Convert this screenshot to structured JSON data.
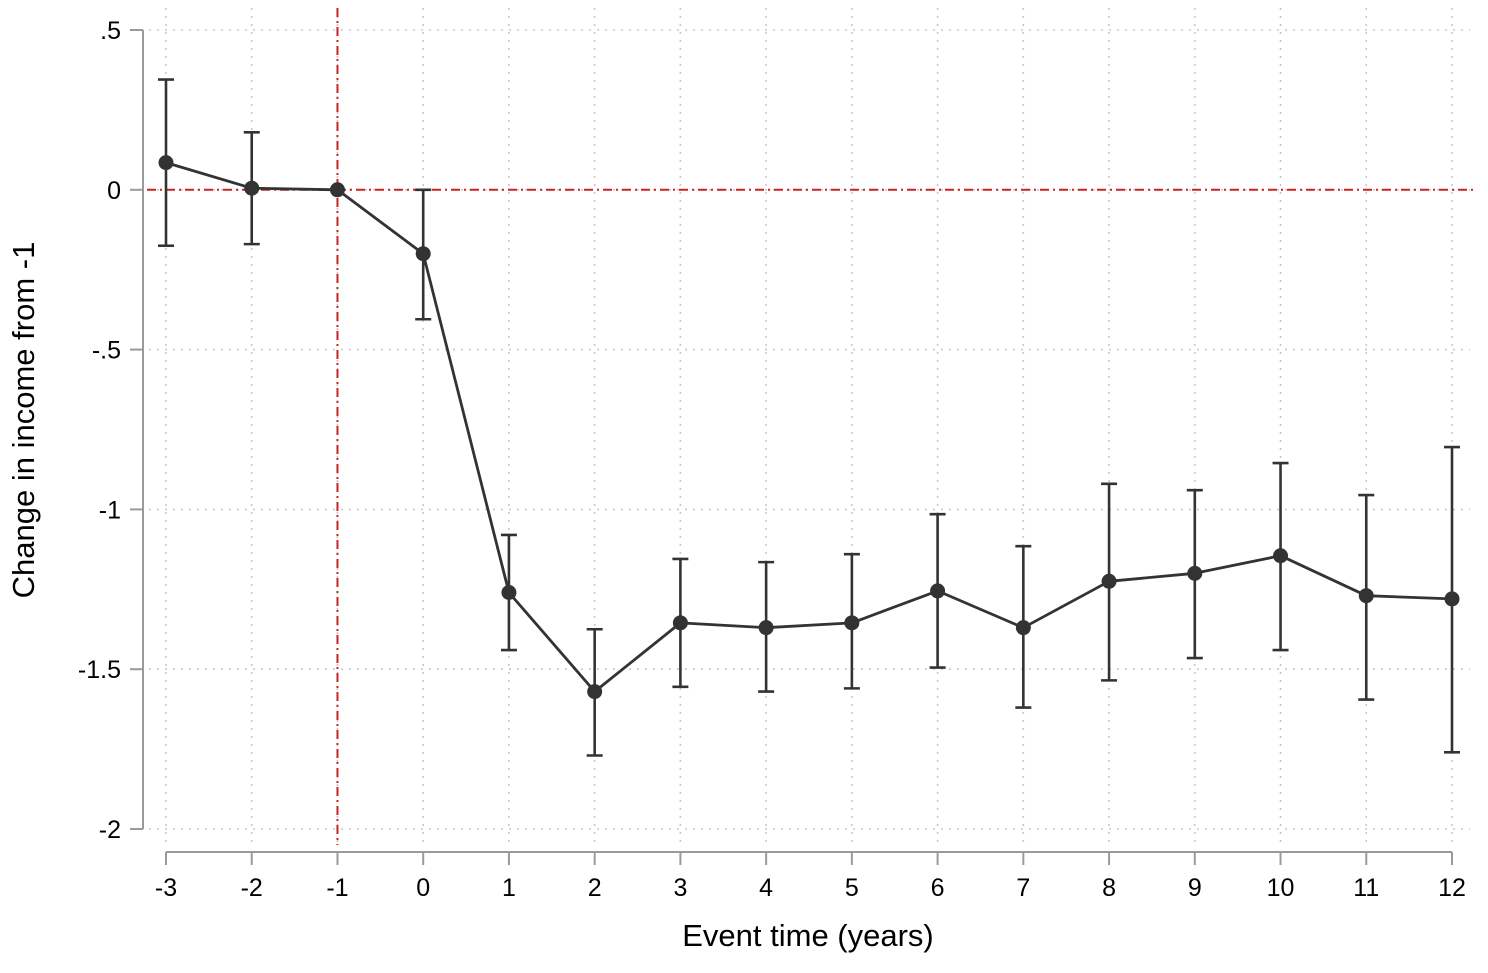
{
  "chart_data": {
    "type": "line",
    "title": "",
    "xlabel": "Event time (years)",
    "ylabel": "Change in income from -1",
    "x_ticks": [
      {
        "value": -3,
        "label": "-3"
      },
      {
        "value": -2,
        "label": "-2"
      },
      {
        "value": -1,
        "label": "-1"
      },
      {
        "value": 0,
        "label": "0"
      },
      {
        "value": 1,
        "label": "1"
      },
      {
        "value": 2,
        "label": "2"
      },
      {
        "value": 3,
        "label": "3"
      },
      {
        "value": 4,
        "label": "4"
      },
      {
        "value": 5,
        "label": "5"
      },
      {
        "value": 6,
        "label": "6"
      },
      {
        "value": 7,
        "label": "7"
      },
      {
        "value": 8,
        "label": "8"
      },
      {
        "value": 9,
        "label": "9"
      },
      {
        "value": 10,
        "label": "10"
      },
      {
        "value": 11,
        "label": "11"
      },
      {
        "value": 12,
        "label": "12"
      }
    ],
    "y_ticks": [
      {
        "value": 0.5,
        "label": ".5"
      },
      {
        "value": 0,
        "label": "0"
      },
      {
        "value": -0.5,
        "label": "-.5"
      },
      {
        "value": -1,
        "label": "-1"
      },
      {
        "value": -1.5,
        "label": "-1.5"
      },
      {
        "value": -2,
        "label": "-2"
      }
    ],
    "xlim": [
      -3,
      12
    ],
    "ylim": [
      -2,
      0.5
    ],
    "grid": true,
    "reference_lines": [
      {
        "axis": "y",
        "value": 0,
        "style": "dashed",
        "color": "#cc2222"
      },
      {
        "axis": "x",
        "value": -1,
        "style": "dashed",
        "color": "#cc2222"
      }
    ],
    "series": [
      {
        "color": "#333333",
        "marker": "circle",
        "x": [
          -3,
          -2,
          -1,
          0,
          1,
          2,
          3,
          4,
          5,
          6,
          7,
          8,
          9,
          10,
          11,
          12
        ],
        "y": [
          0.085,
          0.005,
          0,
          -0.2,
          -1.26,
          -1.57,
          -1.355,
          -1.37,
          -1.355,
          -1.255,
          -1.37,
          -1.225,
          -1.2,
          -1.145,
          -1.27,
          -1.28
        ],
        "ci_low": [
          -0.175,
          -0.17,
          0,
          -0.405,
          -1.44,
          -1.77,
          -1.555,
          -1.57,
          -1.56,
          -1.495,
          -1.62,
          -1.535,
          -1.465,
          -1.44,
          -1.595,
          -1.76
        ],
        "ci_high": [
          0.345,
          0.18,
          0,
          0.0,
          -1.08,
          -1.375,
          -1.155,
          -1.165,
          -1.14,
          -1.015,
          -1.115,
          -0.92,
          -0.94,
          -0.855,
          -0.955,
          -0.805
        ]
      }
    ]
  }
}
